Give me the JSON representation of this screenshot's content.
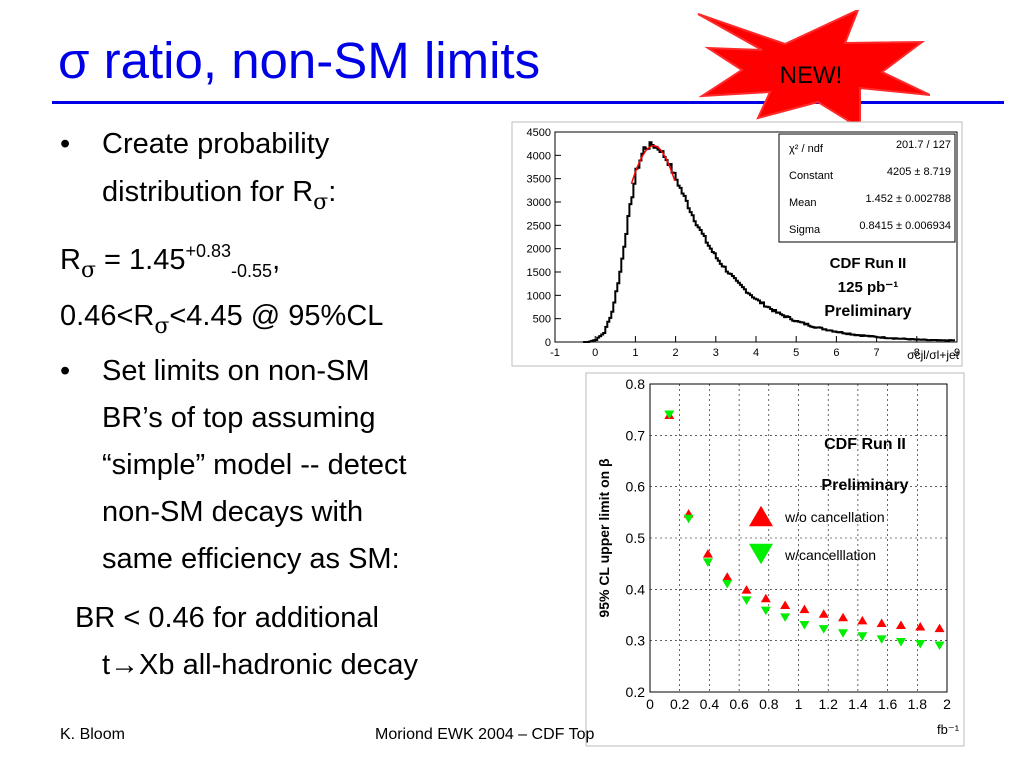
{
  "slide": {
    "title": "σ ratio, non-SM limits",
    "new_badge": "NEW!",
    "bullets": {
      "b1_line1": "Create probability",
      "b1_line2_pre": "distribution for R",
      "b1_line2_sub": "σ",
      "b1_line2_post": ":",
      "r_pre": "R",
      "r_sub": "σ",
      "r_eq": " = 1.45",
      "r_sup": "+0.83",
      "r_sub2": "-0.55",
      "r_post": ",",
      "cl_pre": "0.46<R",
      "cl_sub": "σ",
      "cl_post": "<4.45 @ 95%CL",
      "b2_line1": "Set limits on non-SM",
      "b2_line2": "BR’s of top assuming",
      "b2_line3": "“simple” model -- detect",
      "b2_line4": "non-SM decays with",
      "b2_line5": "same efficiency as SM:",
      "br_line1": "BR < 0.46 for additional",
      "br_line2": "t→Xb all-hadronic decay"
    },
    "bullet_char": "•",
    "footer_left": "K. Bloom",
    "footer_center": "Moriond EWK 2004 – CDF Top"
  },
  "chart_data": [
    {
      "type": "histogram",
      "xlim": [
        -1,
        9
      ],
      "ylim": [
        0,
        4500
      ],
      "x_ticks": [
        "-1",
        "0",
        "1",
        "2",
        "3",
        "4",
        "5",
        "6",
        "7",
        "8",
        "9"
      ],
      "y_ticks": [
        "0",
        "500",
        "1000",
        "1500",
        "2000",
        "2500",
        "3000",
        "3500",
        "4000",
        "4500"
      ],
      "stats_box": [
        {
          "label": "χ² / ndf",
          "value": "201.7 / 127"
        },
        {
          "label": "Constant",
          "value": "4205 ± 8.719"
        },
        {
          "label": "Mean",
          "value": "1.452 ± 0.002788"
        },
        {
          "label": "Sigma",
          "value": "0.8415 ± 0.006934"
        }
      ],
      "annotations": [
        "CDF Run II",
        "125 pb⁻¹",
        "Preliminary"
      ],
      "xlabel": "σcjl/σl+jet",
      "histogram_shape": {
        "x": [
          -0.2,
          0.0,
          0.2,
          0.4,
          0.6,
          0.8,
          1.0,
          1.2,
          1.4,
          1.6,
          1.8,
          2.0,
          2.2,
          2.4,
          2.6,
          2.8,
          3.0,
          3.5,
          4.0,
          4.5,
          5.0,
          5.5,
          6.0,
          6.5,
          7.0,
          7.5,
          8.0,
          8.5
        ],
        "y": [
          0,
          50,
          200,
          650,
          1500,
          2650,
          3650,
          4150,
          4230,
          4120,
          3850,
          3480,
          3100,
          2720,
          2380,
          2070,
          1800,
          1280,
          900,
          630,
          440,
          310,
          220,
          150,
          105,
          75,
          50,
          35
        ]
      },
      "fit_range": [
        0.9,
        2.0
      ]
    },
    {
      "type": "scatter",
      "xlim": [
        0,
        2
      ],
      "ylim": [
        0.2,
        0.8
      ],
      "x_ticks": [
        "0",
        "0.2",
        "0.4",
        "0.6",
        "0.8",
        "1",
        "1.2",
        "1.4",
        "1.6",
        "1.8",
        "2"
      ],
      "y_ticks": [
        "0.2",
        "0.3",
        "0.4",
        "0.5",
        "0.6",
        "0.7",
        "0.8"
      ],
      "ylabel": "95% CL upper limit on β",
      "xunit": "fb⁻¹",
      "annotations": [
        "CDF Run II",
        "Preliminary"
      ],
      "grid": true,
      "series": [
        {
          "name": "w/o cancellation",
          "color": "#ff0000",
          "marker": "triangle-up",
          "x": [
            0.13,
            0.26,
            0.39,
            0.52,
            0.65,
            0.78,
            0.91,
            1.04,
            1.17,
            1.3,
            1.43,
            1.56,
            1.69,
            1.82,
            1.95
          ],
          "y": [
            0.74,
            0.548,
            0.47,
            0.425,
            0.4,
            0.383,
            0.37,
            0.362,
            0.353,
            0.346,
            0.34,
            0.335,
            0.331,
            0.328,
            0.325
          ]
        },
        {
          "name": "w/cancelllation",
          "color": "#00ee00",
          "marker": "triangle-down",
          "x": [
            0.13,
            0.26,
            0.39,
            0.52,
            0.65,
            0.78,
            0.91,
            1.04,
            1.17,
            1.3,
            1.43,
            1.56,
            1.69,
            1.82,
            1.95
          ],
          "y": [
            0.74,
            0.537,
            0.452,
            0.41,
            0.378,
            0.358,
            0.345,
            0.33,
            0.322,
            0.314,
            0.308,
            0.302,
            0.297,
            0.293,
            0.29
          ]
        }
      ]
    }
  ]
}
